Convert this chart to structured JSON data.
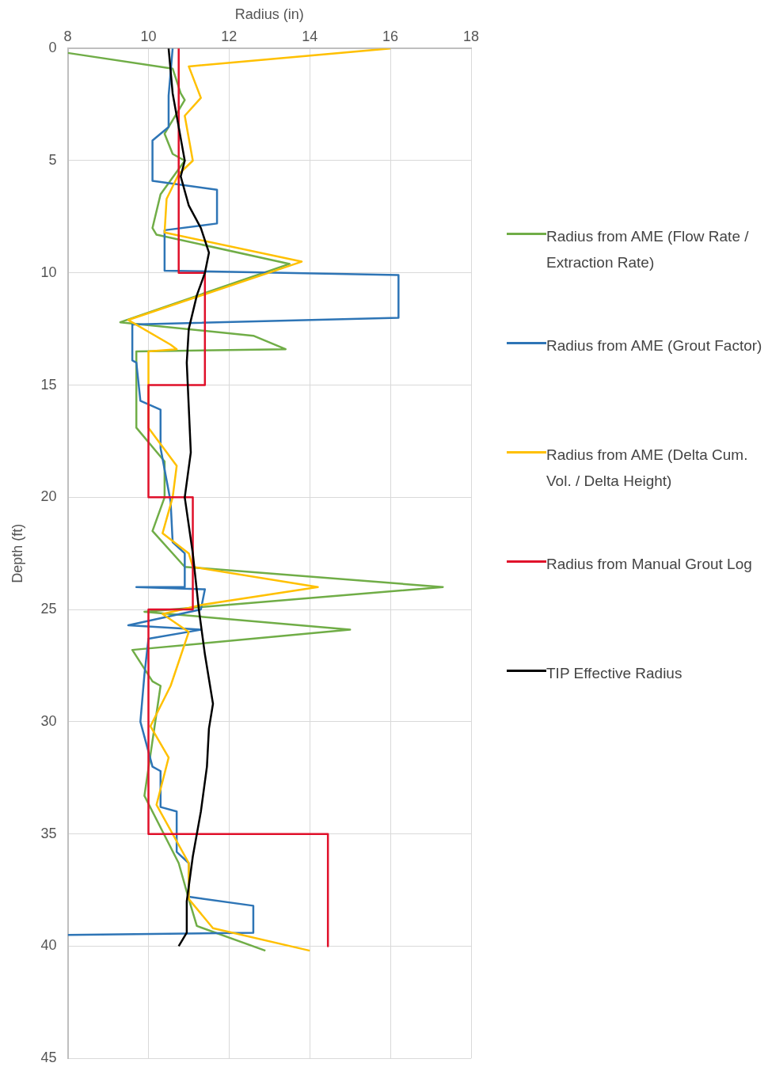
{
  "chart_data": {
    "type": "line",
    "xlabel": "Radius (in)",
    "ylabel": "Depth (ft)",
    "xlim": [
      8,
      18
    ],
    "xticks": [
      8,
      10,
      12,
      14,
      16,
      18
    ],
    "ylim": [
      45,
      0
    ],
    "yticks": [
      0,
      5,
      10,
      15,
      20,
      25,
      30,
      35,
      40,
      45
    ],
    "grid": true,
    "legend": "right",
    "marker": "none",
    "line_style": "solid",
    "series": [
      {
        "name": "Radius from AME (Flow Rate / Extraction Rate)",
        "color": "#70ad47",
        "x": [
          8,
          10.6,
          10.8,
          10.9,
          10.4,
          10.6,
          10.9,
          10.3,
          10.1,
          10.2,
          13.5,
          9.3,
          12.6,
          13.4,
          9.7,
          9.7,
          10.4,
          10.4,
          10.1,
          10.9,
          17.3,
          9.9,
          15.0,
          9.6,
          10.1,
          10.3,
          9.9,
          10.75,
          11.0,
          11.2,
          12.9
        ],
        "values": [
          0.2,
          0.9,
          2.0,
          2.3,
          3.8,
          4.7,
          5.0,
          6.5,
          8.0,
          8.3,
          9.6,
          12.2,
          12.8,
          13.4,
          13.5,
          16.9,
          18.4,
          20.0,
          21.5,
          23.1,
          24.0,
          25.1,
          25.9,
          26.8,
          28.2,
          28.4,
          33.3,
          36.3,
          37.9,
          39.1,
          40.2
        ]
      },
      {
        "name": "Radius from AME (Grout Factor)",
        "color": "#2e75b6",
        "x": [
          10.6,
          10.5,
          10.5,
          10.1,
          10.1,
          11.7,
          11.7,
          10.4,
          10.4,
          16.2,
          16.2,
          9.6,
          9.6,
          9.7,
          9.8,
          10.3,
          10.3,
          10.55,
          10.6,
          10.9,
          10.9,
          9.7,
          11.4,
          11.3,
          9.5,
          11.3,
          10.0,
          9.9,
          9.8,
          10.1,
          10.3,
          10.3,
          10.7,
          10.7,
          11.0,
          11.0,
          12.6,
          12.6,
          8.0
        ],
        "values": [
          0,
          2.1,
          3.5,
          4.1,
          5.9,
          6.3,
          7.8,
          8.1,
          9.9,
          10.1,
          12.0,
          12.3,
          13.9,
          14.0,
          15.7,
          16.1,
          17.8,
          20.2,
          22.0,
          22.5,
          24.0,
          24.0,
          24.1,
          25.0,
          25.7,
          25.9,
          26.3,
          27.9,
          30.0,
          32.0,
          32.2,
          33.8,
          34.0,
          35.8,
          36.3,
          37.8,
          38.2,
          39.4,
          39.5
        ]
      },
      {
        "name": "Radius from AME (Delta Cum. Vol. / Delta Height)",
        "color": "#ffc000",
        "x": [
          16.0,
          11.0,
          11.3,
          10.9,
          11.1,
          10.75,
          10.45,
          10.4,
          13.8,
          9.5,
          10.55,
          10.7,
          10.0,
          10.0,
          10.7,
          10.6,
          10.35,
          11.0,
          11.1,
          14.2,
          11.3,
          10.35,
          11.0,
          10.55,
          10.05,
          10.5,
          10.2,
          11.0,
          11.0,
          11.6,
          14.0
        ],
        "values": [
          0,
          0.8,
          2.2,
          3.0,
          5.0,
          5.6,
          6.7,
          8.2,
          9.5,
          12.1,
          13.2,
          13.4,
          13.5,
          16.9,
          18.6,
          20.0,
          21.6,
          22.5,
          23.1,
          24.0,
          24.8,
          25.2,
          26.0,
          28.4,
          30.2,
          31.6,
          33.7,
          36.3,
          37.9,
          39.2,
          40.2
        ]
      },
      {
        "name": "Radius from Manual Grout Log",
        "color": "#e0102a",
        "x": [
          10.75,
          10.75,
          11.4,
          11.4,
          10.0,
          10.0,
          11.1,
          11.1,
          10.0,
          10.0,
          14.45,
          14.45
        ],
        "values": [
          0,
          10,
          10,
          15,
          15,
          20,
          20,
          25,
          25,
          35,
          35,
          40
        ]
      },
      {
        "name": "TIP Effective Radius",
        "color": "#000000",
        "x": [
          10.5,
          10.6,
          10.8,
          10.9,
          10.8,
          11.0,
          11.3,
          11.5,
          11.4,
          11.2,
          11.0,
          10.95,
          11.0,
          11.05,
          10.9,
          11.1,
          11.25,
          11.4,
          11.6,
          11.5,
          11.45,
          11.3,
          11.1,
          10.95,
          10.95,
          10.75
        ],
        "values": [
          0,
          2,
          4,
          5,
          5.7,
          7,
          8,
          9.1,
          10,
          11,
          12.5,
          14,
          16,
          18,
          20,
          22.5,
          25,
          27,
          29.2,
          30.3,
          32,
          34,
          36,
          38,
          39.4,
          40
        ]
      }
    ]
  }
}
